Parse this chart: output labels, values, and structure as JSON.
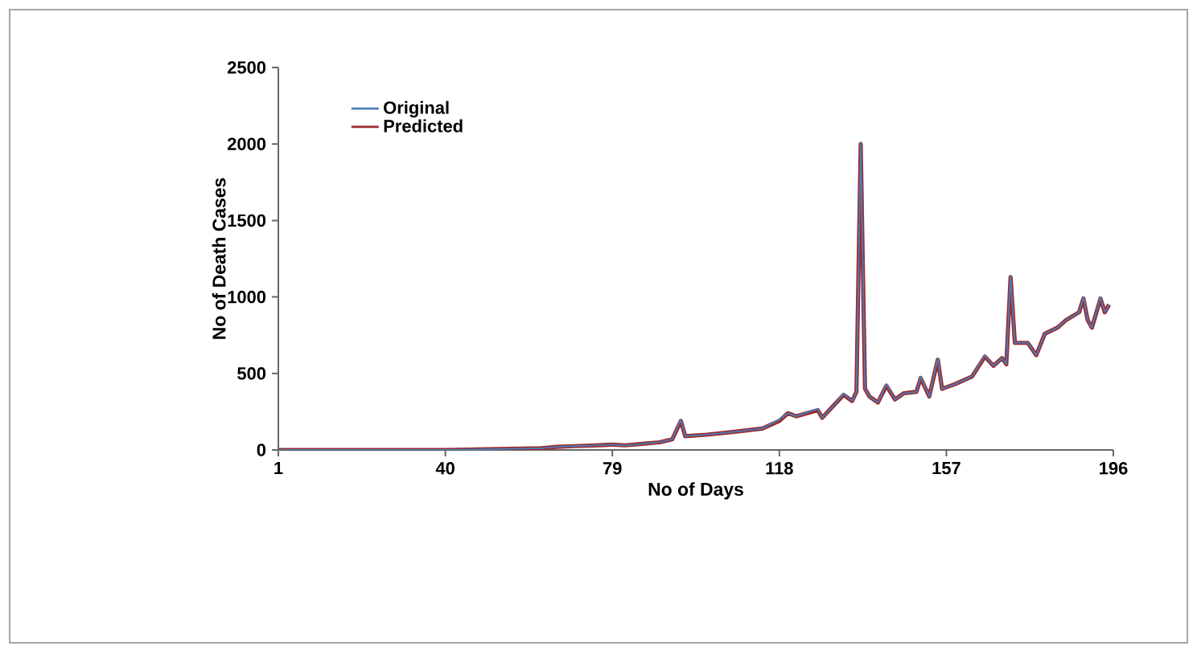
{
  "chart_data": {
    "type": "line",
    "xlabel": "No of Days",
    "ylabel": "No of Death Cases",
    "xlim": [
      1,
      196
    ],
    "ylim": [
      0,
      2500
    ],
    "xticks": [
      1,
      40,
      79,
      118,
      157,
      196
    ],
    "yticks": [
      0,
      500,
      1000,
      1500,
      2000,
      2500
    ],
    "legend": "top left",
    "grid": false,
    "marker": "none",
    "line_style": "solid",
    "series": [
      {
        "name": "Original",
        "color": "#4a7ebb",
        "x": [
          1,
          20,
          40,
          60,
          62,
          66,
          70,
          75,
          79,
          82,
          86,
          90,
          93,
          95,
          96,
          101,
          108,
          114,
          118,
          120,
          122,
          127,
          128,
          131,
          133,
          135,
          136,
          137,
          138,
          139,
          141,
          143,
          145,
          147,
          150,
          151,
          153,
          155,
          156,
          159,
          163,
          166,
          168,
          170,
          171,
          172,
          173,
          176,
          178,
          180,
          183,
          185,
          188,
          189,
          190,
          191,
          193,
          194,
          195
        ],
        "values": [
          0,
          0,
          0,
          10,
          10,
          20,
          25,
          30,
          35,
          30,
          40,
          50,
          70,
          200,
          90,
          100,
          120,
          140,
          200,
          240,
          220,
          270,
          210,
          300,
          370,
          320,
          380,
          2010,
          400,
          350,
          310,
          430,
          330,
          370,
          380,
          480,
          350,
          600,
          400,
          430,
          480,
          620,
          550,
          600,
          560,
          1140,
          700,
          700,
          620,
          760,
          800,
          850,
          900,
          1000,
          850,
          800,
          1000,
          900,
          950
        ]
      },
      {
        "name": "Predicted",
        "color": "#9b2d30",
        "x": [
          1,
          20,
          40,
          60,
          62,
          66,
          70,
          75,
          79,
          82,
          86,
          90,
          93,
          95,
          96,
          101,
          108,
          114,
          118,
          120,
          122,
          127,
          128,
          131,
          133,
          135,
          136,
          137,
          138,
          139,
          141,
          143,
          145,
          147,
          150,
          151,
          153,
          155,
          156,
          159,
          163,
          166,
          168,
          170,
          171,
          172,
          173,
          176,
          178,
          180,
          183,
          185,
          188,
          189,
          190,
          191,
          193,
          194,
          195
        ],
        "values": [
          0,
          0,
          0,
          10,
          10,
          20,
          25,
          30,
          35,
          30,
          40,
          50,
          70,
          190,
          90,
          100,
          120,
          140,
          190,
          240,
          220,
          260,
          210,
          300,
          360,
          320,
          380,
          2000,
          400,
          350,
          310,
          420,
          330,
          370,
          380,
          470,
          350,
          590,
          400,
          430,
          480,
          610,
          550,
          600,
          560,
          1130,
          700,
          700,
          620,
          760,
          800,
          850,
          900,
          990,
          850,
          800,
          990,
          900,
          950
        ]
      }
    ]
  }
}
